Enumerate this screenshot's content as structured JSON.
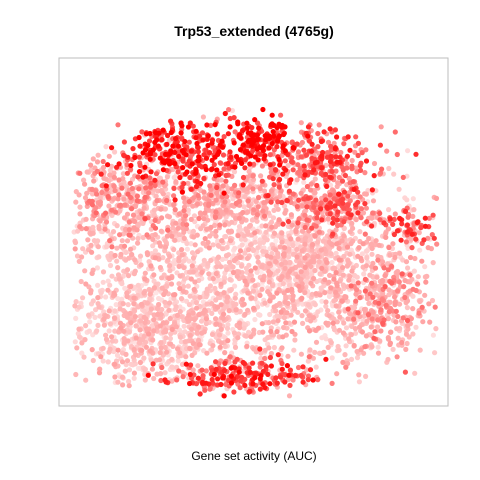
{
  "chart_data": {
    "type": "scatter",
    "title": "Trp53_extended (4765g)",
    "xlabel": "Gene set activity (AUC)",
    "ylabel": "",
    "axes_visible": false,
    "grid": false,
    "legend": "none",
    "color_scale": {
      "low": "#ffeaea",
      "mid": "#ffa5a5",
      "high": "#ff0000",
      "meaning": "higher gene set activity = deeper red"
    },
    "point_count_estimate": 4765,
    "clusters": [
      {
        "x": 0.52,
        "y": 0.78,
        "spread": [
          0.05,
          0.035
        ],
        "activity": 0.92,
        "count": 140
      },
      {
        "x": 0.3,
        "y": 0.74,
        "spread": [
          0.09,
          0.05
        ],
        "activity": 0.85,
        "count": 300
      },
      {
        "x": 0.66,
        "y": 0.72,
        "spread": [
          0.09,
          0.05
        ],
        "activity": 0.72,
        "count": 260
      },
      {
        "x": 0.7,
        "y": 0.58,
        "spread": [
          0.07,
          0.04
        ],
        "activity": 0.64,
        "count": 180
      },
      {
        "x": 0.44,
        "y": 0.6,
        "spread": [
          0.08,
          0.04
        ],
        "activity": 0.4,
        "count": 250
      },
      {
        "x": 0.14,
        "y": 0.6,
        "spread": [
          0.08,
          0.06
        ],
        "activity": 0.46,
        "count": 300
      },
      {
        "x": 0.46,
        "y": 0.06,
        "spread": [
          0.1,
          0.025
        ],
        "activity": 0.8,
        "count": 200
      },
      {
        "x": 0.93,
        "y": 0.52,
        "spread": [
          0.04,
          0.03
        ],
        "activity": 0.7,
        "count": 60
      },
      {
        "x": 0.3,
        "y": 0.36,
        "spread": [
          0.2,
          0.18
        ],
        "activity": 0.3,
        "count": 1200
      },
      {
        "x": 0.68,
        "y": 0.38,
        "spread": [
          0.16,
          0.15
        ],
        "activity": 0.32,
        "count": 1000
      },
      {
        "x": 0.22,
        "y": 0.2,
        "spread": [
          0.12,
          0.07
        ],
        "activity": 0.26,
        "count": 400
      },
      {
        "x": 0.85,
        "y": 0.3,
        "spread": [
          0.06,
          0.07
        ],
        "activity": 0.5,
        "count": 200
      },
      {
        "x": 0.6,
        "y": 0.42,
        "spread": [
          0.1,
          0.06
        ],
        "activity": 0.15,
        "count": 250
      }
    ]
  }
}
